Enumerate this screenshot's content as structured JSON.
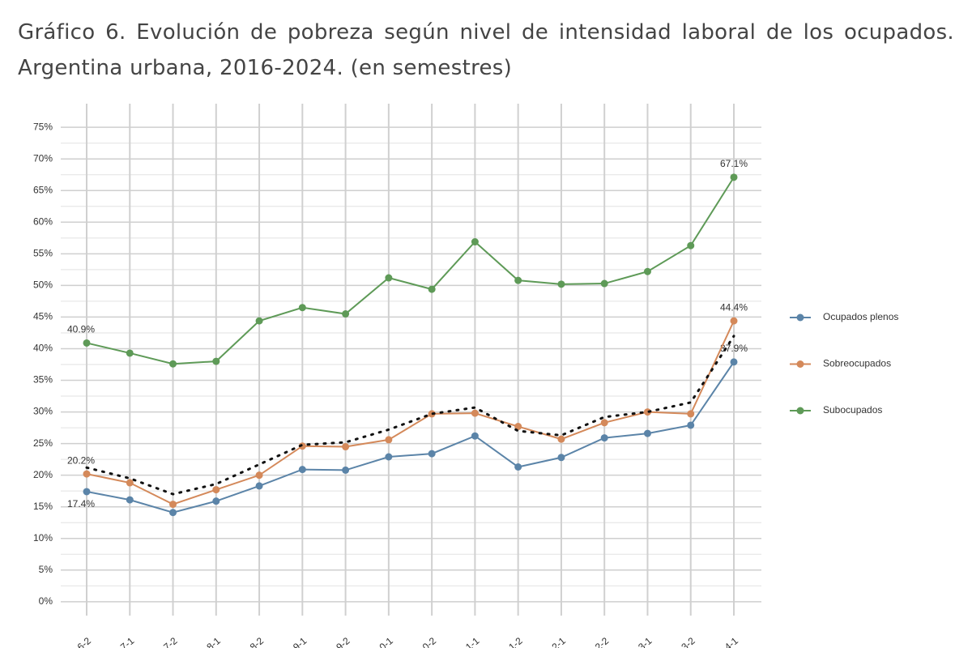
{
  "chart_data": {
    "type": "line",
    "title": "Gráfico 6. Evolución de pobreza según nivel de intensidad laboral de los ocupados. Argentina urbana, 2016-2024. (en semestres)",
    "categories": [
      "6-2",
      "7-1",
      "7-2",
      "8-1",
      "8-2",
      "9-1",
      "9-2",
      "0-1",
      "0-2",
      "1-1",
      "1-2",
      "2-1",
      "2-2",
      "3-1",
      "3-2",
      "4-1"
    ],
    "series": [
      {
        "name": "Ocupados plenos",
        "color": "#5b84a8",
        "markers": true,
        "values": [
          17.4,
          16.1,
          14.1,
          15.9,
          18.3,
          20.9,
          20.8,
          22.9,
          23.4,
          26.2,
          21.3,
          22.8,
          25.9,
          26.6,
          27.9,
          37.9
        ],
        "value_labels": [
          "17.4%",
          null,
          null,
          null,
          null,
          null,
          null,
          null,
          null,
          null,
          null,
          null,
          null,
          null,
          null,
          "37.9%"
        ]
      },
      {
        "name": "Sobreocupados",
        "color": "#d4895a",
        "markers": true,
        "values": [
          20.2,
          18.8,
          15.4,
          17.7,
          20.0,
          24.6,
          24.5,
          25.6,
          29.7,
          29.8,
          27.7,
          25.7,
          28.3,
          30.0,
          29.7,
          44.4
        ],
        "value_labels": [
          "20.2%",
          null,
          null,
          null,
          null,
          null,
          null,
          null,
          null,
          null,
          null,
          null,
          null,
          null,
          null,
          "44.4%"
        ]
      },
      {
        "name": "Subocupados",
        "color": "#5e9a57",
        "markers": true,
        "values": [
          40.9,
          39.3,
          37.6,
          38.0,
          44.4,
          46.5,
          45.5,
          51.2,
          49.4,
          56.9,
          50.8,
          50.2,
          50.3,
          52.2,
          56.3,
          67.1
        ],
        "value_labels": [
          "40.9%",
          null,
          null,
          null,
          null,
          null,
          null,
          null,
          null,
          null,
          null,
          null,
          null,
          null,
          null,
          "67.1%"
        ]
      },
      {
        "color": "#111111",
        "dotted": true,
        "markers": false,
        "values": [
          21.2,
          19.5,
          17.0,
          18.6,
          21.7,
          24.8,
          25.2,
          27.2,
          29.7,
          30.7,
          27.0,
          26.3,
          29.2,
          30.0,
          31.5,
          42.0
        ]
      }
    ],
    "ylim": [
      -2.2,
      77.2
    ],
    "yticks": [
      {
        "value": 0,
        "label": "0%"
      },
      {
        "value": 5,
        "label": "5%"
      },
      {
        "value": 10,
        "label": "10%"
      },
      {
        "value": 15,
        "label": "15%"
      },
      {
        "value": 20,
        "label": "20%"
      },
      {
        "value": 25,
        "label": "25%"
      },
      {
        "value": 30,
        "label": "30%"
      },
      {
        "value": 35,
        "label": "35%"
      },
      {
        "value": 40,
        "label": "40%"
      },
      {
        "value": 45,
        "label": "45%"
      },
      {
        "value": 50,
        "label": "50%"
      },
      {
        "value": 55,
        "label": "55%"
      },
      {
        "value": 60,
        "label": "60%"
      },
      {
        "value": 65,
        "label": "65%"
      },
      {
        "value": 70,
        "label": "70%"
      },
      {
        "value": 75,
        "label": "75%"
      }
    ],
    "grid": true,
    "legend": "right"
  }
}
